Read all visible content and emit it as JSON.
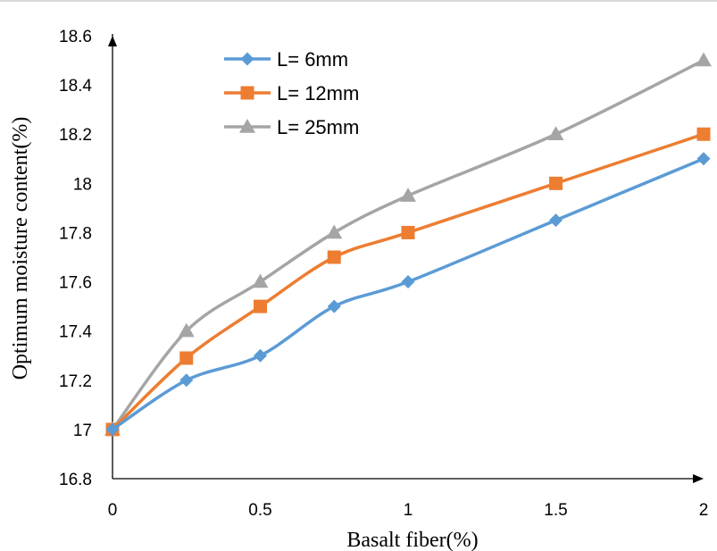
{
  "chart_data": {
    "type": "line",
    "xlabel": "Basalt fiber(%)",
    "ylabel": "Optimum moisture content(%)",
    "xlim": [
      0,
      2
    ],
    "ylim": [
      16.8,
      18.6
    ],
    "x_ticks": [
      "0",
      "0.5",
      "1",
      "1.5",
      "2"
    ],
    "y_ticks": [
      "16.8",
      "17",
      "17.2",
      "17.4",
      "17.6",
      "17.8",
      "18",
      "18.2",
      "18.4",
      "18.6"
    ],
    "grid": false,
    "legend_position": "top-left",
    "x": [
      0,
      0.25,
      0.5,
      0.75,
      1,
      1.5,
      2
    ],
    "series": [
      {
        "name": "L= 6mm",
        "marker": "diamond",
        "color": "#5b9bd5",
        "values": [
          17.0,
          17.2,
          17.3,
          17.5,
          17.6,
          17.85,
          18.1
        ]
      },
      {
        "name": "L= 12mm",
        "marker": "square",
        "color": "#ed7d31",
        "values": [
          17.0,
          17.29,
          17.5,
          17.7,
          17.8,
          18.0,
          18.2
        ]
      },
      {
        "name": "L= 25mm",
        "marker": "triangle",
        "color": "#a5a5a5",
        "values": [
          17.0,
          17.4,
          17.6,
          17.8,
          17.95,
          18.2,
          18.5
        ]
      }
    ]
  }
}
